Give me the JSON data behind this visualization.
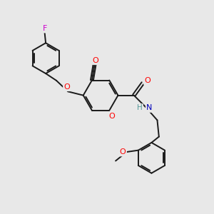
{
  "bg_color": "#e8e8e8",
  "bond_color": "#1a1a1a",
  "atom_colors": {
    "O": "#ff0000",
    "N": "#0000bb",
    "F": "#cc00cc",
    "H": "#559999",
    "C": "#1a1a1a"
  }
}
